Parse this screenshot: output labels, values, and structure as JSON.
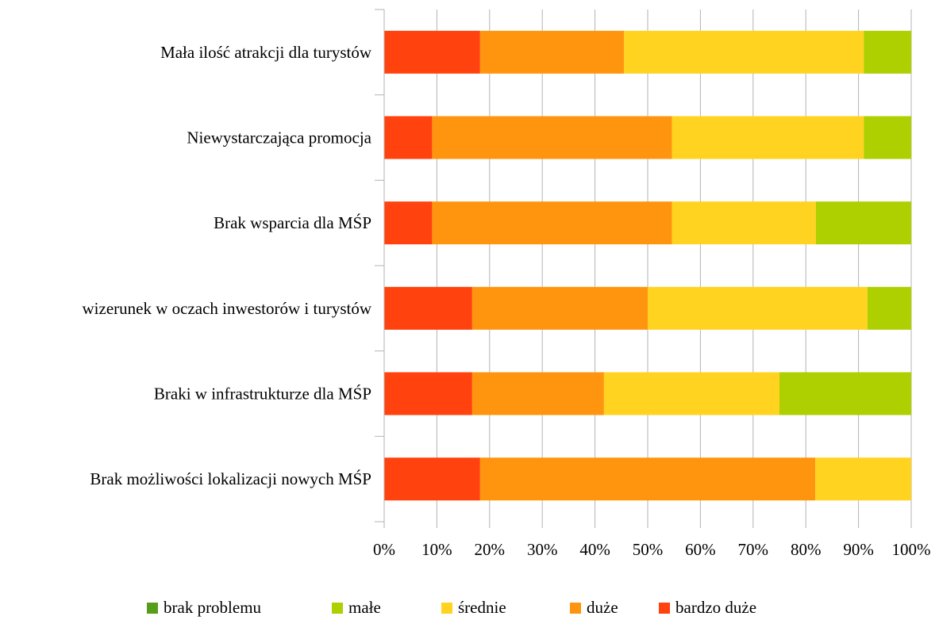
{
  "chart_data": {
    "type": "bar",
    "orientation": "horizontal",
    "stacked": "percent",
    "title": "",
    "xlabel": "",
    "ylabel": "",
    "xlim": [
      0,
      100
    ],
    "x_ticks": [
      "0%",
      "10%",
      "20%",
      "30%",
      "40%",
      "50%",
      "60%",
      "70%",
      "80%",
      "90%",
      "100%"
    ],
    "grid": true,
    "legend_position": "bottom",
    "categories": [
      "Mała ilość atrakcji dla turystów",
      "Niewystarczająca promocja",
      "Brak wsparcia dla MŚP",
      "wizerunek w oczach inwestorów i turystów",
      "Braki w infrastrukturze dla MŚP",
      "Brak możliwości lokalizacji nowych MŚP"
    ],
    "series": [
      {
        "name": "bardzo duże",
        "color": "#ff420e",
        "values": [
          18.2,
          9.1,
          9.1,
          16.7,
          16.7,
          18.2
        ]
      },
      {
        "name": "duże",
        "color": "#ff950e",
        "values": [
          27.3,
          45.5,
          45.5,
          33.3,
          25.0,
          63.6
        ]
      },
      {
        "name": "średnie",
        "color": "#ffd320",
        "values": [
          45.5,
          36.4,
          27.3,
          41.7,
          33.3,
          18.2
        ]
      },
      {
        "name": "małe",
        "color": "#aecf00",
        "values": [
          9.0,
          9.0,
          18.1,
          8.3,
          25.0,
          0
        ]
      },
      {
        "name": "brak problemu",
        "color": "#579d1c",
        "values": [
          0,
          0,
          0,
          0,
          0,
          0
        ]
      }
    ],
    "legend_order": [
      "brak problemu",
      "małe",
      "średnie",
      "duże",
      "bardzo duże"
    ]
  }
}
